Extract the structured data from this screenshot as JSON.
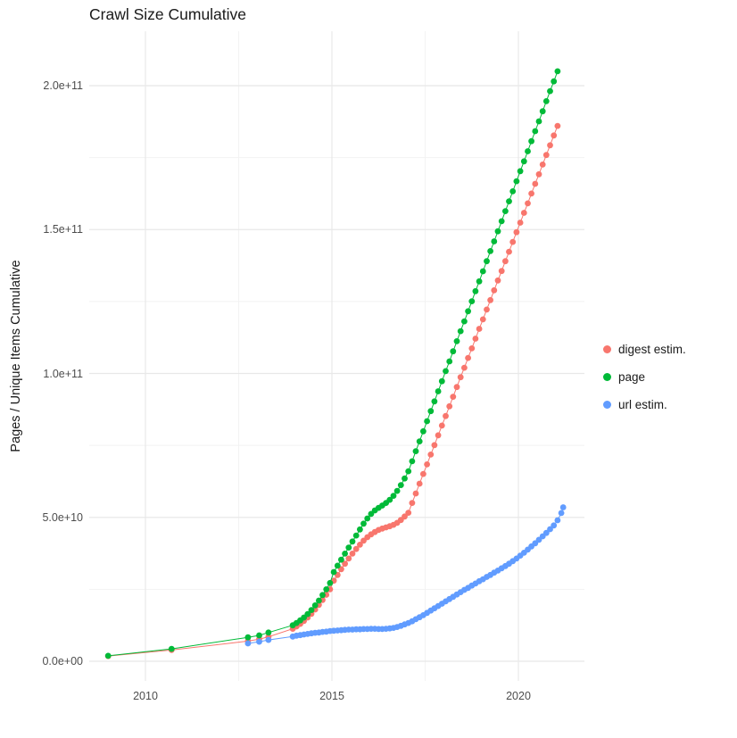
{
  "chart_data": {
    "type": "scatter",
    "style": "connected points (line + dot), ggplot2 default palette, white panel with light gray grid",
    "title": "Crawl Size Cumulative",
    "xlabel": "",
    "ylabel": "Pages / Unique Items Cumulative",
    "value_unit": "items; numeric point values are in units of 1e9 (billions)",
    "xlim": [
      2008.5,
      2021.8
    ],
    "ylim_e9": [
      -7,
      219
    ],
    "grid": true,
    "legend_position": "right",
    "x_ticks": [
      {
        "label": "2010",
        "year": 2010
      },
      {
        "label": "2015",
        "year": 2015
      },
      {
        "label": "2020",
        "year": 2020
      }
    ],
    "x_minor_ticks": [
      2012.5,
      2017.5
    ],
    "y_ticks": [
      {
        "label": "0.0e+00",
        "value_e9": 0
      },
      {
        "label": "5.0e+10",
        "value_e9": 50
      },
      {
        "label": "1.0e+11",
        "value_e9": 100
      },
      {
        "label": "1.5e+11",
        "value_e9": 150
      },
      {
        "label": "2.0e+11",
        "value_e9": 200
      }
    ],
    "y_minor_ticks_e9": [
      25,
      75,
      125,
      175
    ],
    "series": [
      {
        "name": "digest estim.",
        "color": "#F8766D",
        "points_year_value_e9": [
          [
            2009.0,
            1.8
          ],
          [
            2010.7,
            3.9
          ],
          [
            2012.75,
            7.0
          ],
          [
            2013.05,
            7.7
          ],
          [
            2013.3,
            8.5
          ],
          [
            2013.95,
            11.3
          ],
          [
            2014.05,
            12.1
          ],
          [
            2014.15,
            13.0
          ],
          [
            2014.25,
            14.0
          ],
          [
            2014.35,
            15.2
          ],
          [
            2014.45,
            16.5
          ],
          [
            2014.55,
            18.0
          ],
          [
            2014.65,
            19.6
          ],
          [
            2014.75,
            21.3
          ],
          [
            2014.85,
            23.1
          ],
          [
            2014.95,
            25.0
          ],
          [
            2015.05,
            28.0
          ],
          [
            2015.15,
            30.0
          ],
          [
            2015.25,
            32.0
          ],
          [
            2015.35,
            33.9
          ],
          [
            2015.45,
            35.7
          ],
          [
            2015.55,
            37.4
          ],
          [
            2015.65,
            39.0
          ],
          [
            2015.75,
            40.5
          ],
          [
            2015.85,
            41.9
          ],
          [
            2015.95,
            43.1
          ],
          [
            2016.05,
            44.1
          ],
          [
            2016.15,
            44.9
          ],
          [
            2016.25,
            45.6
          ],
          [
            2016.35,
            46.1
          ],
          [
            2016.45,
            46.5
          ],
          [
            2016.55,
            46.9
          ],
          [
            2016.65,
            47.4
          ],
          [
            2016.75,
            48.1
          ],
          [
            2016.85,
            49.1
          ],
          [
            2016.95,
            50.3
          ],
          [
            2017.05,
            51.6
          ],
          [
            2017.15,
            55.0
          ],
          [
            2017.25,
            58.3
          ],
          [
            2017.35,
            61.7
          ],
          [
            2017.45,
            65.1
          ],
          [
            2017.55,
            68.4
          ],
          [
            2017.65,
            71.8
          ],
          [
            2017.75,
            75.1
          ],
          [
            2017.85,
            78.5
          ],
          [
            2017.95,
            81.9
          ],
          [
            2018.05,
            85.2
          ],
          [
            2018.15,
            88.6
          ],
          [
            2018.25,
            91.9
          ],
          [
            2018.35,
            95.3
          ],
          [
            2018.45,
            98.7
          ],
          [
            2018.55,
            102.0
          ],
          [
            2018.65,
            105.4
          ],
          [
            2018.75,
            108.7
          ],
          [
            2018.85,
            112.1
          ],
          [
            2018.95,
            115.5
          ],
          [
            2019.05,
            118.8
          ],
          [
            2019.15,
            122.2
          ],
          [
            2019.25,
            125.5
          ],
          [
            2019.35,
            128.9
          ],
          [
            2019.45,
            132.3
          ],
          [
            2019.55,
            135.6
          ],
          [
            2019.65,
            139.0
          ],
          [
            2019.75,
            142.3
          ],
          [
            2019.85,
            145.7
          ],
          [
            2019.95,
            149.1
          ],
          [
            2020.05,
            152.4
          ],
          [
            2020.15,
            155.8
          ],
          [
            2020.25,
            159.1
          ],
          [
            2020.35,
            162.5
          ],
          [
            2020.45,
            165.9
          ],
          [
            2020.55,
            169.2
          ],
          [
            2020.65,
            172.6
          ],
          [
            2020.75,
            175.9
          ],
          [
            2020.85,
            179.3
          ],
          [
            2020.95,
            182.7
          ],
          [
            2021.05,
            186.0
          ]
        ]
      },
      {
        "name": "page",
        "color": "#00BA38",
        "points_year_value_e9": [
          [
            2009.0,
            1.9
          ],
          [
            2010.7,
            4.3
          ],
          [
            2012.75,
            8.3
          ],
          [
            2013.05,
            9.0
          ],
          [
            2013.3,
            10.0
          ],
          [
            2013.95,
            12.5
          ],
          [
            2014.05,
            13.3
          ],
          [
            2014.15,
            14.2
          ],
          [
            2014.25,
            15.2
          ],
          [
            2014.35,
            16.4
          ],
          [
            2014.45,
            17.8
          ],
          [
            2014.55,
            19.4
          ],
          [
            2014.65,
            21.1
          ],
          [
            2014.75,
            23.0
          ],
          [
            2014.85,
            25.0
          ],
          [
            2014.95,
            27.2
          ],
          [
            2015.05,
            31.0
          ],
          [
            2015.15,
            33.2
          ],
          [
            2015.25,
            35.3
          ],
          [
            2015.35,
            37.4
          ],
          [
            2015.45,
            39.5
          ],
          [
            2015.55,
            41.6
          ],
          [
            2015.65,
            43.7
          ],
          [
            2015.75,
            45.8
          ],
          [
            2015.85,
            47.8
          ],
          [
            2015.95,
            49.6
          ],
          [
            2016.05,
            51.2
          ],
          [
            2016.15,
            52.4
          ],
          [
            2016.25,
            53.3
          ],
          [
            2016.35,
            54.1
          ],
          [
            2016.45,
            55.0
          ],
          [
            2016.55,
            56.1
          ],
          [
            2016.65,
            57.5
          ],
          [
            2016.75,
            59.2
          ],
          [
            2016.85,
            61.2
          ],
          [
            2016.95,
            63.5
          ],
          [
            2017.05,
            66.0
          ],
          [
            2017.15,
            69.5
          ],
          [
            2017.25,
            73.0
          ],
          [
            2017.35,
            76.4
          ],
          [
            2017.45,
            79.9
          ],
          [
            2017.55,
            83.4
          ],
          [
            2017.65,
            86.9
          ],
          [
            2017.75,
            90.3
          ],
          [
            2017.85,
            93.8
          ],
          [
            2017.95,
            97.3
          ],
          [
            2018.05,
            100.8
          ],
          [
            2018.15,
            104.2
          ],
          [
            2018.25,
            107.7
          ],
          [
            2018.35,
            111.2
          ],
          [
            2018.45,
            114.7
          ],
          [
            2018.55,
            118.1
          ],
          [
            2018.65,
            121.6
          ],
          [
            2018.75,
            125.1
          ],
          [
            2018.85,
            128.6
          ],
          [
            2018.95,
            132.0
          ],
          [
            2019.05,
            135.5
          ],
          [
            2019.15,
            139.0
          ],
          [
            2019.25,
            142.5
          ],
          [
            2019.35,
            145.9
          ],
          [
            2019.45,
            149.4
          ],
          [
            2019.55,
            152.9
          ],
          [
            2019.65,
            156.4
          ],
          [
            2019.75,
            159.8
          ],
          [
            2019.85,
            163.3
          ],
          [
            2019.95,
            166.8
          ],
          [
            2020.05,
            170.3
          ],
          [
            2020.15,
            173.7
          ],
          [
            2020.25,
            177.2
          ],
          [
            2020.35,
            180.7
          ],
          [
            2020.45,
            184.2
          ],
          [
            2020.55,
            187.6
          ],
          [
            2020.65,
            191.1
          ],
          [
            2020.75,
            194.6
          ],
          [
            2020.85,
            198.1
          ],
          [
            2020.95,
            201.5
          ],
          [
            2021.05,
            205.0
          ]
        ]
      },
      {
        "name": "url estim.",
        "color": "#619CFF",
        "points_year_value_e9": [
          [
            2012.75,
            6.2
          ],
          [
            2013.05,
            6.8
          ],
          [
            2013.3,
            7.4
          ],
          [
            2013.95,
            8.6
          ],
          [
            2014.05,
            8.9
          ],
          [
            2014.15,
            9.1
          ],
          [
            2014.25,
            9.3
          ],
          [
            2014.35,
            9.5
          ],
          [
            2014.45,
            9.7
          ],
          [
            2014.55,
            9.9
          ],
          [
            2014.65,
            10.0
          ],
          [
            2014.75,
            10.2
          ],
          [
            2014.85,
            10.3
          ],
          [
            2014.95,
            10.5
          ],
          [
            2015.05,
            10.6
          ],
          [
            2015.15,
            10.7
          ],
          [
            2015.25,
            10.8
          ],
          [
            2015.35,
            10.9
          ],
          [
            2015.45,
            11.0
          ],
          [
            2015.55,
            11.0
          ],
          [
            2015.65,
            11.1
          ],
          [
            2015.75,
            11.1
          ],
          [
            2015.85,
            11.2
          ],
          [
            2015.95,
            11.2
          ],
          [
            2016.05,
            11.3
          ],
          [
            2016.15,
            11.3
          ],
          [
            2016.25,
            11.2
          ],
          [
            2016.35,
            11.2
          ],
          [
            2016.45,
            11.3
          ],
          [
            2016.55,
            11.4
          ],
          [
            2016.65,
            11.6
          ],
          [
            2016.75,
            11.9
          ],
          [
            2016.85,
            12.3
          ],
          [
            2016.95,
            12.8
          ],
          [
            2017.05,
            13.3
          ],
          [
            2017.15,
            13.9
          ],
          [
            2017.25,
            14.6
          ],
          [
            2017.35,
            15.3
          ],
          [
            2017.45,
            16.0
          ],
          [
            2017.55,
            16.8
          ],
          [
            2017.65,
            17.6
          ],
          [
            2017.75,
            18.4
          ],
          [
            2017.85,
            19.2
          ],
          [
            2017.95,
            20.0
          ],
          [
            2018.05,
            20.8
          ],
          [
            2018.15,
            21.6
          ],
          [
            2018.25,
            22.4
          ],
          [
            2018.35,
            23.2
          ],
          [
            2018.45,
            24.0
          ],
          [
            2018.55,
            24.8
          ],
          [
            2018.65,
            25.5
          ],
          [
            2018.75,
            26.3
          ],
          [
            2018.85,
            27.0
          ],
          [
            2018.95,
            27.8
          ],
          [
            2019.05,
            28.5
          ],
          [
            2019.15,
            29.3
          ],
          [
            2019.25,
            30.0
          ],
          [
            2019.35,
            30.8
          ],
          [
            2019.45,
            31.5
          ],
          [
            2019.55,
            32.3
          ],
          [
            2019.65,
            33.1
          ],
          [
            2019.75,
            33.9
          ],
          [
            2019.85,
            34.8
          ],
          [
            2019.95,
            35.7
          ],
          [
            2020.05,
            36.7
          ],
          [
            2020.15,
            37.7
          ],
          [
            2020.25,
            38.8
          ],
          [
            2020.35,
            39.9
          ],
          [
            2020.45,
            41.0
          ],
          [
            2020.55,
            42.2
          ],
          [
            2020.65,
            43.4
          ],
          [
            2020.75,
            44.6
          ],
          [
            2020.85,
            45.9
          ],
          [
            2020.95,
            47.2
          ],
          [
            2021.05,
            49.0
          ],
          [
            2021.15,
            51.5
          ],
          [
            2021.2,
            53.5
          ]
        ]
      }
    ]
  }
}
